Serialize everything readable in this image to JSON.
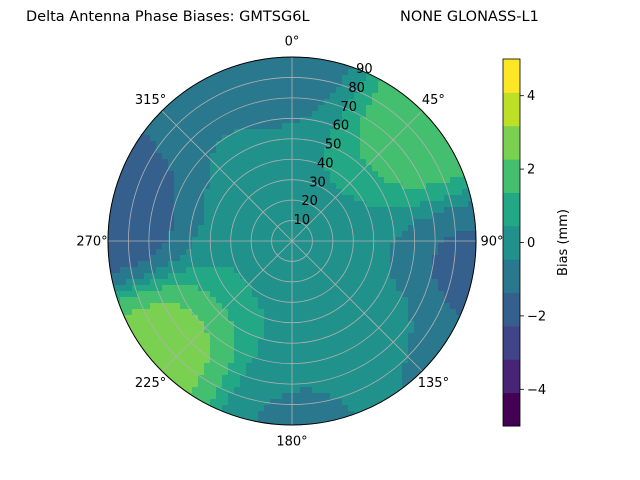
{
  "chart_data": {
    "type": "polar-contour",
    "title_left": "Delta Antenna Phase Biases: GMTSG6L",
    "title_right": "NONE GLONASS-L1",
    "angular_ticks": [
      "0°",
      "45°",
      "90°",
      "135°",
      "180°",
      "225°",
      "270°",
      "315°"
    ],
    "radial_ticks": [
      "10",
      "20",
      "30",
      "40",
      "50",
      "60",
      "70",
      "80",
      "90"
    ],
    "colorbar": {
      "label": "Bias (mm)",
      "tick_labels": [
        "4",
        "2",
        "0",
        "−2",
        "−4"
      ],
      "tick_values": [
        4,
        2,
        0,
        -2,
        -4
      ],
      "range": [
        -5,
        5
      ],
      "levels": [
        -5,
        -4.375,
        -3.75,
        -3.125,
        -2.5,
        -1.875,
        -1.25,
        -0.625,
        0,
        0.625,
        1.25,
        1.875,
        2.5,
        3.125,
        3.75,
        4.375,
        5
      ],
      "colors": [
        "#440154",
        "#482475",
        "#414487",
        "#355f8d",
        "#2a788e",
        "#21918c",
        "#22a884",
        "#44bf70",
        "#7ad151",
        "#bddf26",
        "#fde725"
      ]
    },
    "grid": true,
    "field_note_regions": [
      {
        "azimuth": 0,
        "zenith": 0,
        "value": 0.4
      },
      {
        "azimuth": 50,
        "zenith": 85,
        "value": 1.9
      },
      {
        "azimuth": 232,
        "zenith": 85,
        "value": 2.6
      },
      {
        "azimuth": 275,
        "zenith": 88,
        "value": -1.8
      },
      {
        "azimuth": 100,
        "zenith": 88,
        "value": -1.5
      },
      {
        "azimuth": 0,
        "zenith": 95,
        "value": -0.9
      },
      {
        "azimuth": 180,
        "zenith": 95,
        "value": -0.5
      },
      {
        "azimuth": 130,
        "zenith": 55,
        "value": -0.4
      }
    ]
  }
}
